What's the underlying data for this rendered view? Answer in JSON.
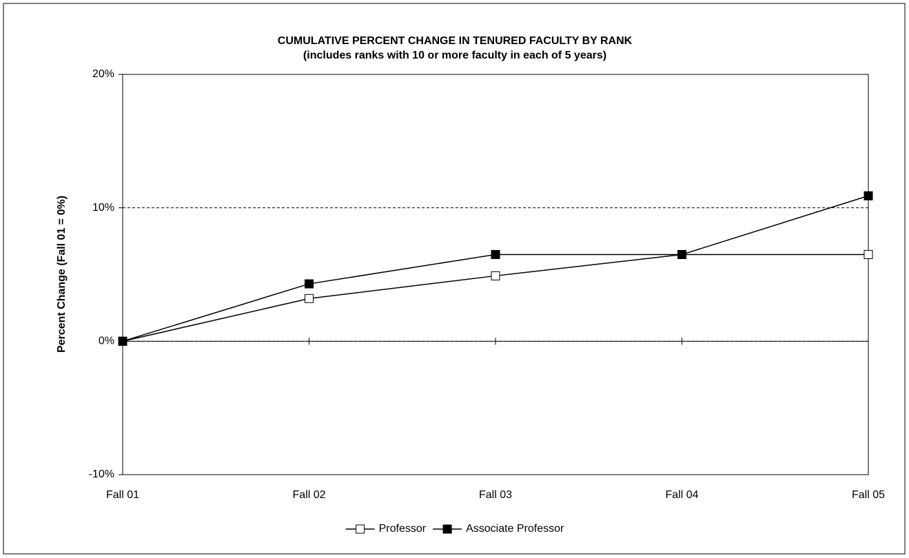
{
  "chart_data": {
    "type": "line",
    "title": "CUMULATIVE PERCENT CHANGE IN TENURED FACULTY BY RANK",
    "subtitle": "(includes ranks with 10 or more faculty in each of 5 years)",
    "y_label": "Percent Change (Fall 01 = 0%)",
    "categories": [
      "Fall 01",
      "Fall 02",
      "Fall 03",
      "Fall 04",
      "Fall 05"
    ],
    "series": [
      {
        "name": "Professor",
        "color": "#000000",
        "marker_fill": "#ffffff",
        "values": [
          0,
          3.2,
          4.9,
          6.5,
          6.5
        ]
      },
      {
        "name": "Associate Professor",
        "color": "#000000",
        "marker_fill": "#000000",
        "values": [
          0,
          4.3,
          6.5,
          6.5,
          10.9
        ]
      }
    ],
    "ylim": [
      -10,
      20
    ],
    "yticks": [
      {
        "value": -10,
        "label": "-10%"
      },
      {
        "value": 0,
        "label": "0%"
      },
      {
        "value": 10,
        "label": "10%"
      },
      {
        "value": 20,
        "label": "20%"
      }
    ],
    "grid": true,
    "legend": "bottom"
  }
}
